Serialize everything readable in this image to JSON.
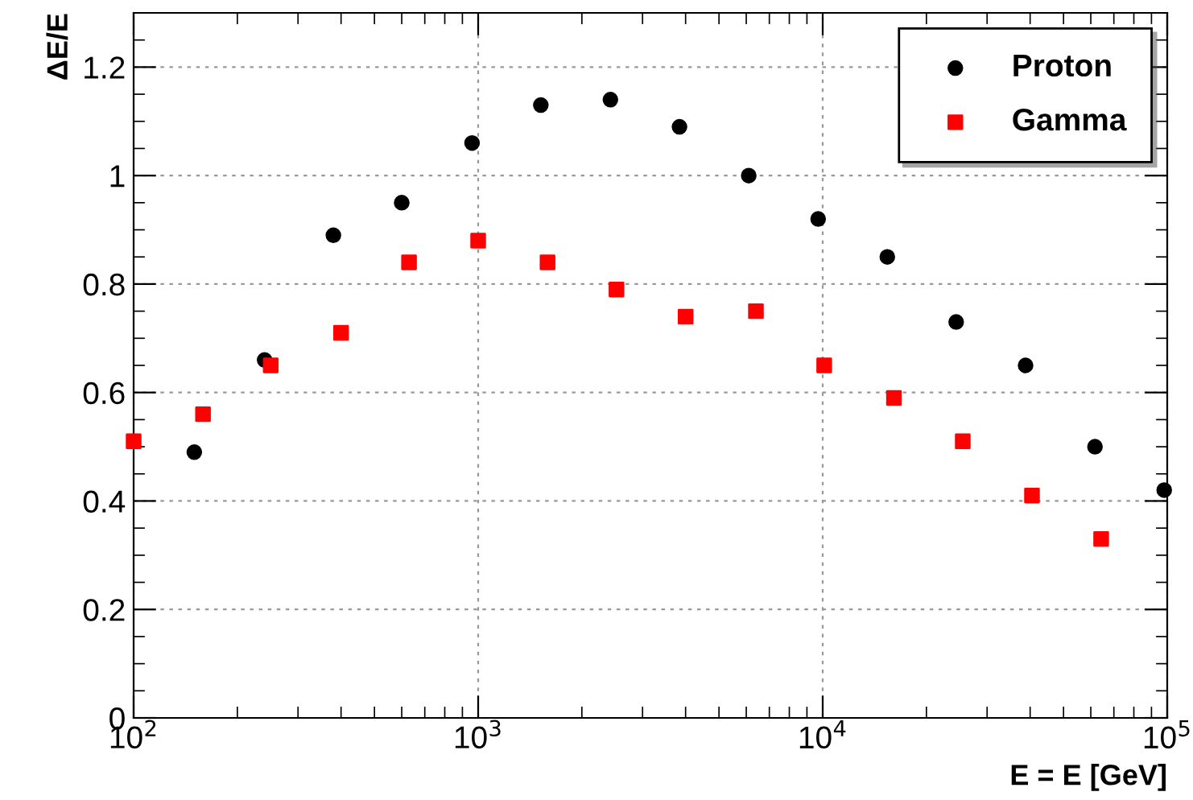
{
  "chart_data": {
    "type": "scatter",
    "xlabel": "E = E [GeV]",
    "ylabel": "ΔE/E",
    "log": "x",
    "grid": true,
    "legend": "top right",
    "xlim": [
      100,
      100000
    ],
    "xticks": [
      {
        "value": 100,
        "label": "10$^{2}$"
      },
      {
        "value": 1000,
        "label": "10$^{3}$"
      },
      {
        "value": 10000,
        "label": "10$^{4}$"
      },
      {
        "value": 100000,
        "label": "10$^{5}$"
      }
    ],
    "ylim": [
      0,
      1.3
    ],
    "yticks": [
      0,
      0.2,
      0.4,
      0.6,
      0.8,
      1,
      1.2
    ],
    "series": [
      {
        "name": "Proton",
        "color": "#000000",
        "marker": "circle",
        "x": [
          150,
          240,
          380,
          600,
          960,
          1520,
          2420,
          3840,
          6100,
          9700,
          15400,
          24400,
          38800,
          61700,
          98000
        ],
        "values": [
          0.49,
          0.66,
          0.89,
          0.95,
          1.06,
          1.13,
          1.14,
          1.09,
          1.0,
          0.92,
          0.85,
          0.73,
          0.65,
          0.5,
          0.42
        ]
      },
      {
        "name": "Gamma",
        "color": "#ff0000",
        "marker": "square",
        "x": [
          100,
          159,
          250,
          400,
          630,
          1000,
          1590,
          2520,
          4000,
          6400,
          10100,
          16100,
          25500,
          40500,
          64300
        ],
        "values": [
          0.51,
          0.56,
          0.65,
          0.71,
          0.84,
          0.88,
          0.84,
          0.79,
          0.74,
          0.75,
          0.65,
          0.59,
          0.51,
          0.41,
          0.33
        ]
      }
    ]
  }
}
